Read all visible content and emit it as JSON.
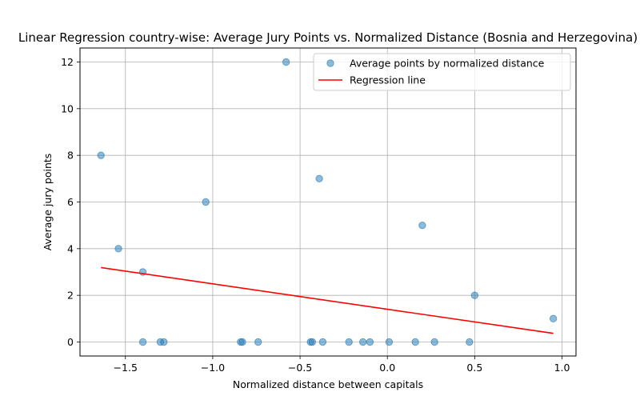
{
  "chart_data": {
    "type": "scatter",
    "title": "Linear Regression country-wise: Average Jury Points vs. Normalized Distance (Bosnia and Herzegovina)",
    "xlabel": "Normalized distance between capitals",
    "ylabel": "Average jury points",
    "xlim": [
      -1.76,
      1.08
    ],
    "ylim": [
      -0.6,
      12.6
    ],
    "xticks": [
      -1.5,
      -1.0,
      -0.5,
      0.0,
      0.5,
      1.0
    ],
    "xtick_labels": [
      "−1.5",
      "−1.0",
      "−0.5",
      "0.0",
      "0.5",
      "1.0"
    ],
    "yticks": [
      0,
      2,
      4,
      6,
      8,
      10,
      12
    ],
    "ytick_labels": [
      "0",
      "2",
      "4",
      "6",
      "8",
      "10",
      "12"
    ],
    "grid": true,
    "legend_position": "top-right",
    "series": [
      {
        "name": "Average points by normalized distance",
        "kind": "scatter",
        "color": "#1f77b4",
        "points": [
          [
            -1.64,
            8
          ],
          [
            -1.54,
            4
          ],
          [
            -1.4,
            3
          ],
          [
            -1.4,
            0
          ],
          [
            -1.3,
            0
          ],
          [
            -1.28,
            0
          ],
          [
            -1.04,
            6
          ],
          [
            -0.84,
            0
          ],
          [
            -0.83,
            0
          ],
          [
            -0.74,
            0
          ],
          [
            -0.58,
            12
          ],
          [
            -0.44,
            0
          ],
          [
            -0.43,
            0
          ],
          [
            -0.39,
            7
          ],
          [
            -0.37,
            0
          ],
          [
            -0.22,
            0
          ],
          [
            -0.14,
            0
          ],
          [
            -0.1,
            0
          ],
          [
            0.01,
            0
          ],
          [
            0.16,
            0
          ],
          [
            0.2,
            5
          ],
          [
            0.27,
            0
          ],
          [
            0.47,
            0
          ],
          [
            0.5,
            2
          ],
          [
            0.95,
            1
          ]
        ]
      },
      {
        "name": "Regression line",
        "kind": "line",
        "color": "#ff0000",
        "points": [
          [
            -1.64,
            3.19
          ],
          [
            0.95,
            0.37
          ]
        ]
      }
    ]
  }
}
